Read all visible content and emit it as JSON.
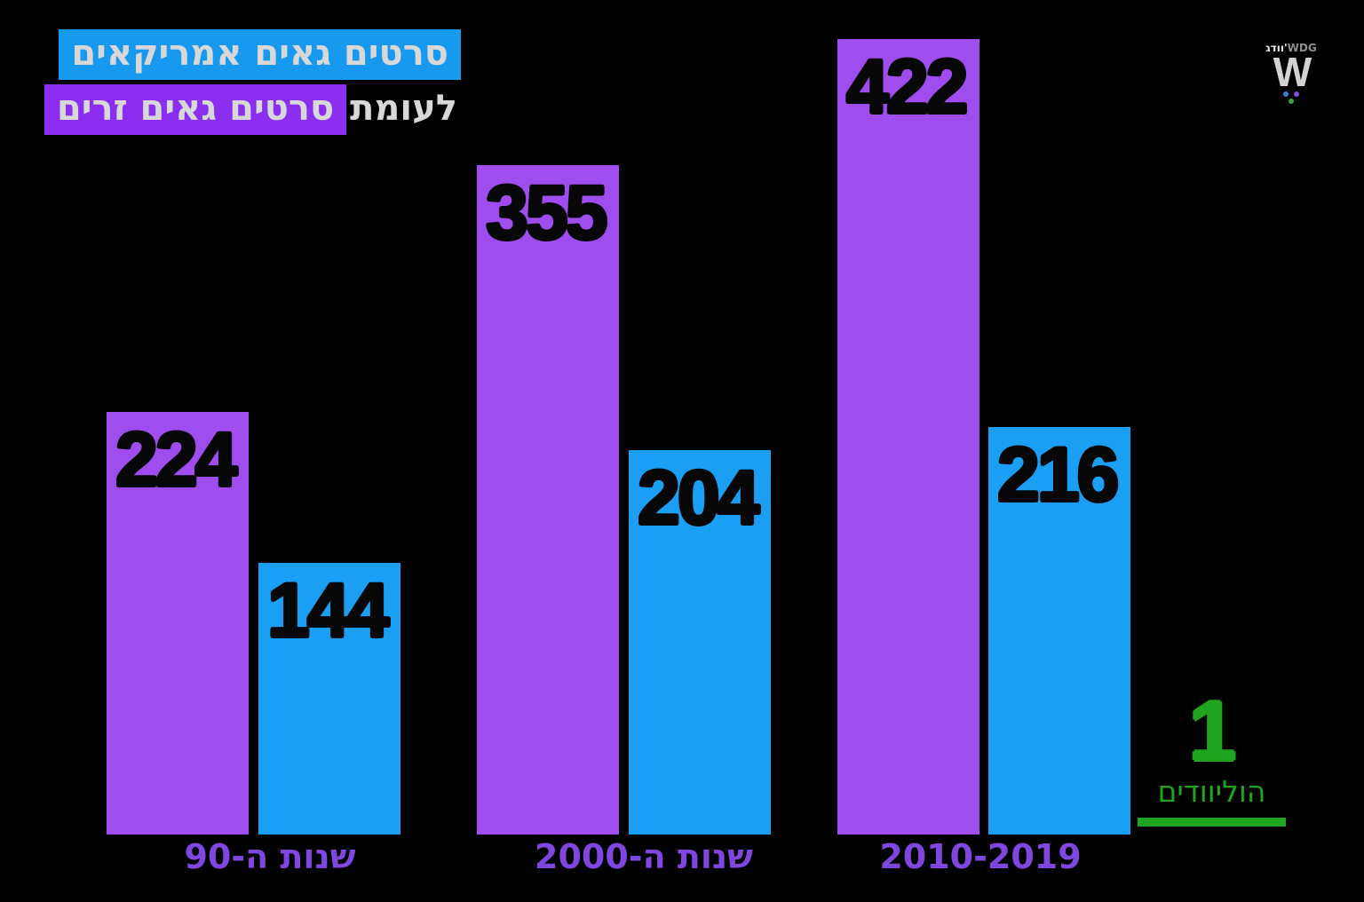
{
  "title": {
    "line1_highlighted": "סרטים גאים אמריקאים",
    "line2_plain": "לעומת",
    "line2_highlighted": "סרטים גאים זרים"
  },
  "logo": {
    "caption_hebrew": "וודג'",
    "caption_latin": "WDG",
    "mark": "W"
  },
  "annotation": {
    "number": "1",
    "label": "הוליוודים"
  },
  "colors": {
    "background": "#000000",
    "bar_purple": "#a04df0",
    "bar_blue": "#1b9ff5",
    "title_highlight_blue": "#1899f0",
    "title_highlight_purple": "#8b2ef2",
    "axis_label_purple": "#8046e0",
    "annotation_green": "#1ea41e",
    "value_label_black": "#070707"
  },
  "chart_data": {
    "type": "bar",
    "title": "סרטים גאים אמריקאים לעומת סרטים גאים זרים",
    "categories": [
      "שנות ה-90",
      "שנות ה-2000",
      "2010-2019"
    ],
    "series": [
      {
        "name": "סרטים גאים זרים",
        "color": "#a04df0",
        "values": [
          224,
          355,
          422
        ]
      },
      {
        "name": "סרטים גאים אמריקאים",
        "color": "#1b9ff5",
        "values": [
          144,
          204,
          216
        ]
      }
    ],
    "ylim": [
      0,
      422
    ],
    "grid": false,
    "legend_position": "title-inline",
    "xlabel": "",
    "ylabel": ""
  }
}
